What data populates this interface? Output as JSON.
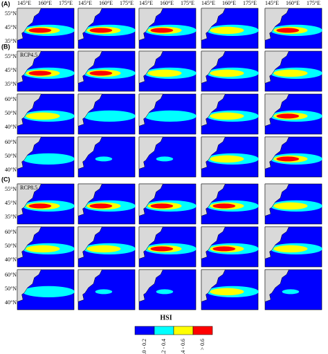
{
  "panels": [
    {
      "label": "(A)"
    },
    {
      "label": "(B)",
      "scenario": "RCP4.5"
    },
    {
      "label": "(C)",
      "scenario": "RCP8.5"
    }
  ],
  "longitudes": [
    "145°E",
    "160°E",
    "175°E"
  ],
  "latitudes_upper": [
    "55°N",
    "45°N",
    "35°N"
  ],
  "latitudes_lower": [
    "60°N",
    "50°N",
    "40°N"
  ],
  "legend": {
    "title": "HSI",
    "items": [
      {
        "label": "0.0 - 0.2",
        "color": "#0000ff"
      },
      {
        "label": "0.2 - 0.4",
        "color": "#00ffff"
      },
      {
        "label": "0.4 - 0.6",
        "color": "#ffff00"
      },
      {
        "label": "> 0.6",
        "color": "#ff0000"
      }
    ]
  }
}
